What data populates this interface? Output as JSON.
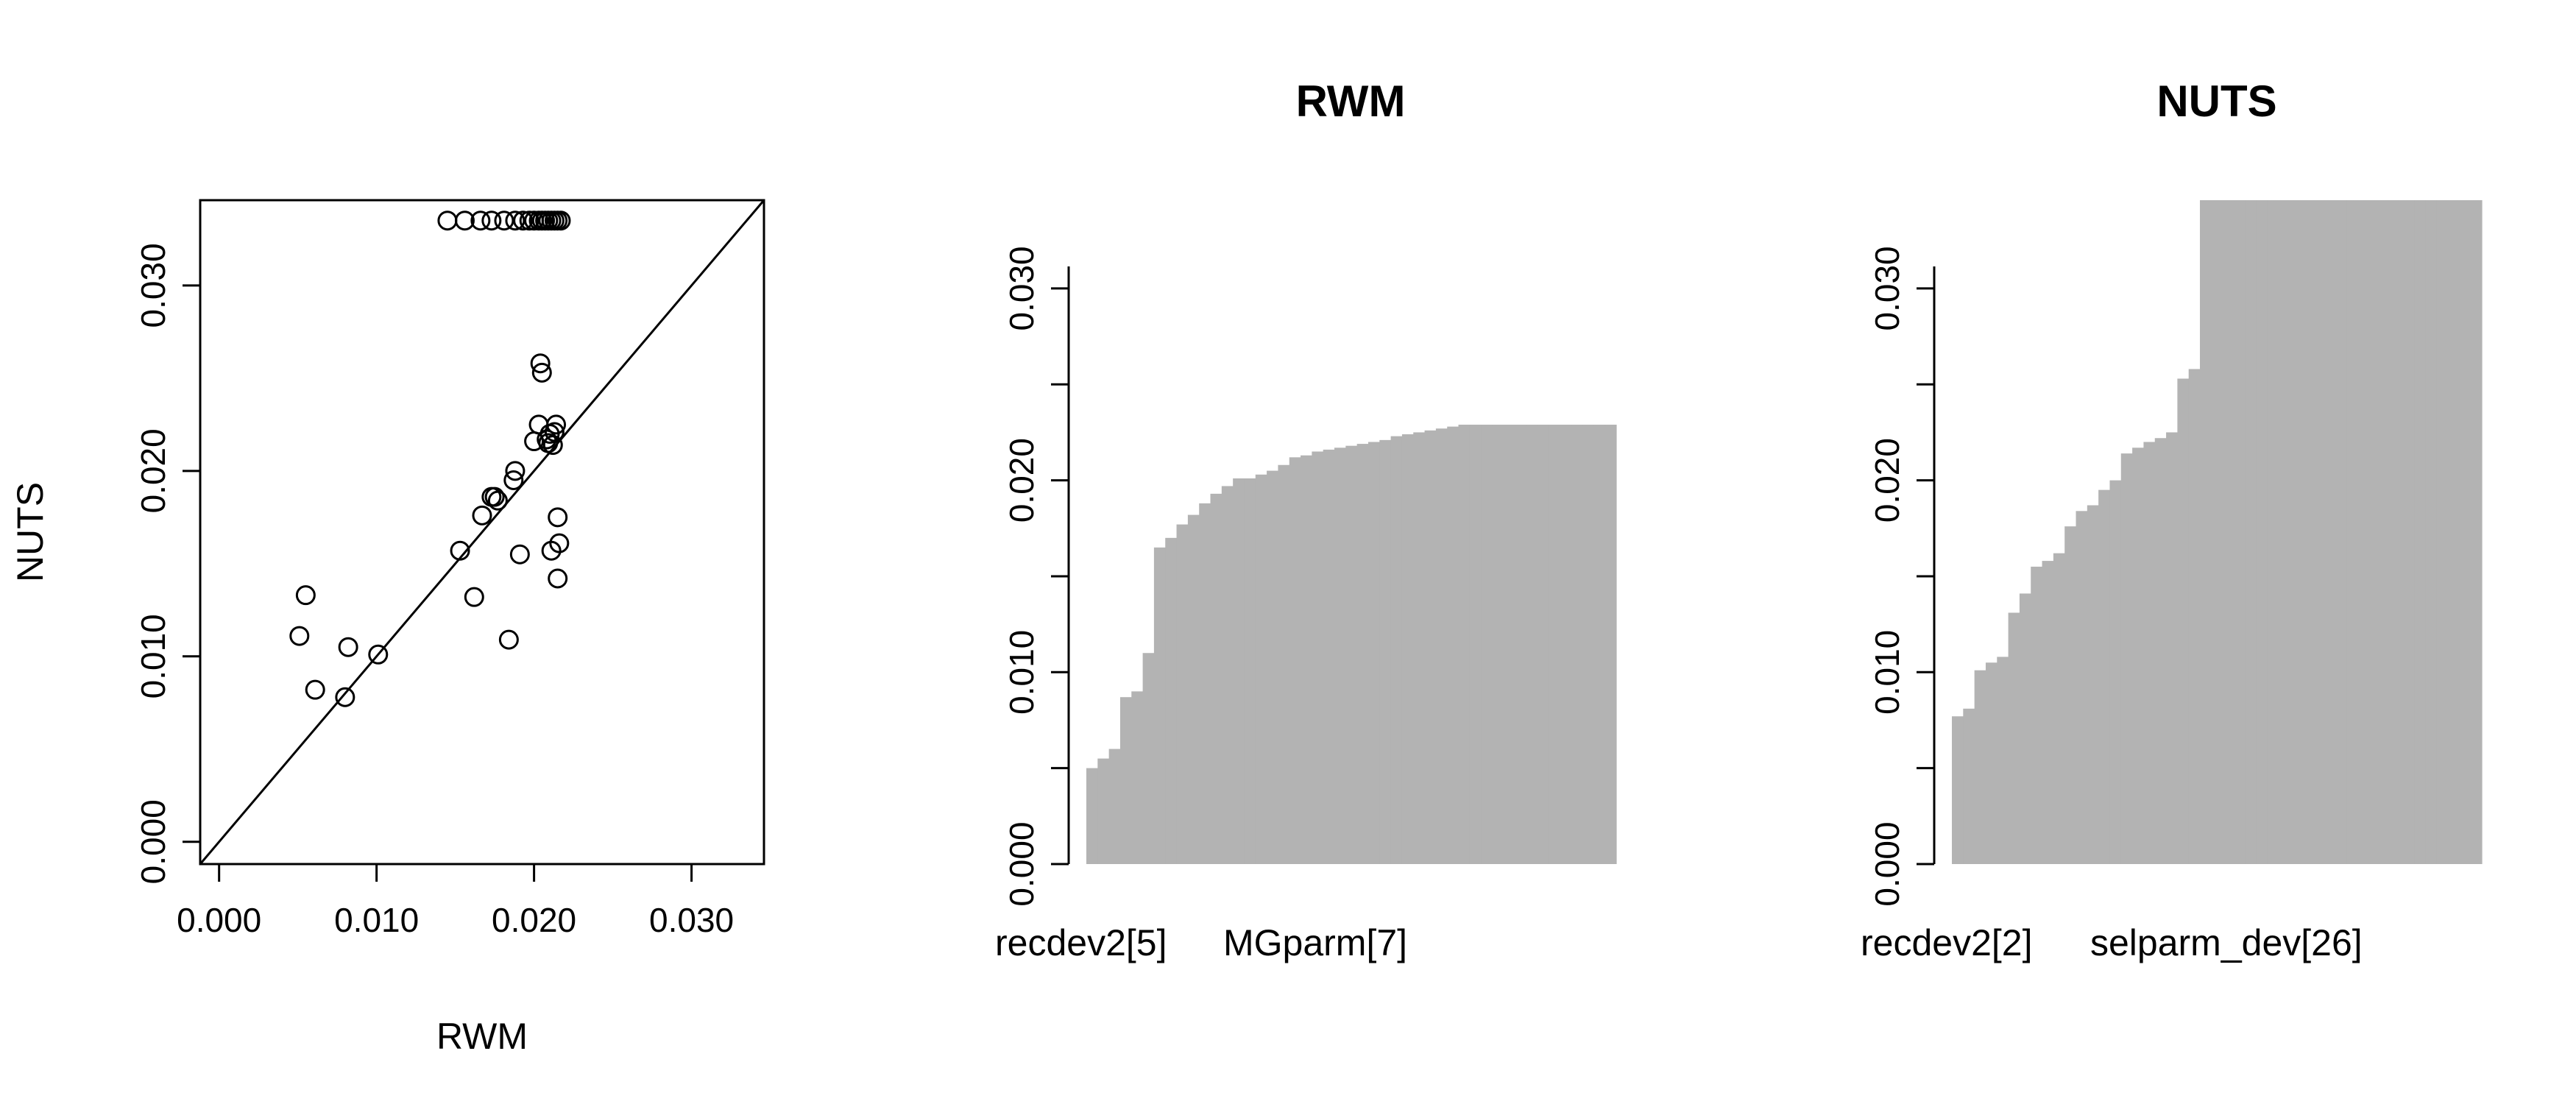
{
  "chart_data": [
    {
      "type": "scatter",
      "title": "",
      "xlabel": "RWM",
      "ylabel": "NUTS",
      "xlim": [
        -0.0012,
        0.0346
      ],
      "ylim": [
        -0.0012,
        0.0346
      ],
      "xticks": [
        "0.000",
        "0.010",
        "0.020",
        "0.030"
      ],
      "yticks": [
        "0.000",
        "0.010",
        "0.020",
        "0.030"
      ],
      "reference_line": "y = x",
      "grid": false,
      "points": [
        {
          "x": 0.0051,
          "y": 0.0111
        },
        {
          "x": 0.0055,
          "y": 0.0133
        },
        {
          "x": 0.0061,
          "y": 0.0082
        },
        {
          "x": 0.008,
          "y": 0.0078
        },
        {
          "x": 0.0082,
          "y": 0.0105
        },
        {
          "x": 0.0101,
          "y": 0.0101
        },
        {
          "x": 0.0153,
          "y": 0.0157
        },
        {
          "x": 0.0162,
          "y": 0.0132
        },
        {
          "x": 0.0167,
          "y": 0.0176
        },
        {
          "x": 0.0173,
          "y": 0.0186
        },
        {
          "x": 0.0175,
          "y": 0.0186
        },
        {
          "x": 0.0177,
          "y": 0.0184
        },
        {
          "x": 0.0184,
          "y": 0.0109
        },
        {
          "x": 0.0187,
          "y": 0.0195
        },
        {
          "x": 0.0188,
          "y": 0.02
        },
        {
          "x": 0.0191,
          "y": 0.0155
        },
        {
          "x": 0.02,
          "y": 0.0216
        },
        {
          "x": 0.0203,
          "y": 0.0225
        },
        {
          "x": 0.0204,
          "y": 0.0258
        },
        {
          "x": 0.0205,
          "y": 0.0253
        },
        {
          "x": 0.0208,
          "y": 0.0217
        },
        {
          "x": 0.0209,
          "y": 0.0215
        },
        {
          "x": 0.021,
          "y": 0.022
        },
        {
          "x": 0.0211,
          "y": 0.0157
        },
        {
          "x": 0.0212,
          "y": 0.0214
        },
        {
          "x": 0.0213,
          "y": 0.0221
        },
        {
          "x": 0.0214,
          "y": 0.0225
        },
        {
          "x": 0.0215,
          "y": 0.0175
        },
        {
          "x": 0.0215,
          "y": 0.0142
        },
        {
          "x": 0.0216,
          "y": 0.0161
        },
        {
          "x": 0.0145,
          "y": 0.0335
        },
        {
          "x": 0.0156,
          "y": 0.0335
        },
        {
          "x": 0.0166,
          "y": 0.0335
        },
        {
          "x": 0.0173,
          "y": 0.0335
        },
        {
          "x": 0.0181,
          "y": 0.0335
        },
        {
          "x": 0.0188,
          "y": 0.0335
        },
        {
          "x": 0.0193,
          "y": 0.0335
        },
        {
          "x": 0.0197,
          "y": 0.0335
        },
        {
          "x": 0.02,
          "y": 0.0335
        },
        {
          "x": 0.0203,
          "y": 0.0335
        },
        {
          "x": 0.0205,
          "y": 0.0335
        },
        {
          "x": 0.0207,
          "y": 0.0335
        },
        {
          "x": 0.0209,
          "y": 0.0335
        },
        {
          "x": 0.0211,
          "y": 0.0335
        },
        {
          "x": 0.0213,
          "y": 0.0335
        },
        {
          "x": 0.0215,
          "y": 0.0335
        },
        {
          "x": 0.0217,
          "y": 0.0335
        }
      ]
    },
    {
      "type": "bar",
      "title": "RWM",
      "xlabel": "",
      "ylabel": "",
      "ylim": [
        0,
        0.0346
      ],
      "yticks": [
        "0.000",
        "0.010",
        "0.020",
        "0.030"
      ],
      "category_labels_shown": [
        "recdev2[5]",
        "MGparm[7]"
      ],
      "values": [
        0.005,
        0.0055,
        0.006,
        0.0087,
        0.009,
        0.011,
        0.0165,
        0.017,
        0.0177,
        0.0182,
        0.0188,
        0.0193,
        0.0197,
        0.0201,
        0.0201,
        0.0203,
        0.0205,
        0.0208,
        0.0212,
        0.0213,
        0.0215,
        0.0216,
        0.0217,
        0.0218,
        0.0219,
        0.022,
        0.0221,
        0.0223,
        0.0224,
        0.0225,
        0.0226,
        0.0227,
        0.0228,
        0.0229,
        0.0229,
        0.0229,
        0.0229,
        0.0229,
        0.0229,
        0.0229,
        0.0229,
        0.0229,
        0.0229,
        0.0229,
        0.0229,
        0.0229,
        0.0229
      ]
    },
    {
      "type": "bar",
      "title": "NUTS",
      "xlabel": "",
      "ylabel": "",
      "ylim": [
        0,
        0.0346
      ],
      "yticks": [
        "0.000",
        "0.010",
        "0.020",
        "0.030"
      ],
      "category_labels_shown": [
        "recdev2[2]",
        "selparm_dev[26]"
      ],
      "values": [
        0.0077,
        0.0081,
        0.0101,
        0.0105,
        0.0108,
        0.0131,
        0.0141,
        0.0155,
        0.0158,
        0.0162,
        0.0176,
        0.0184,
        0.0187,
        0.0195,
        0.02,
        0.0214,
        0.0217,
        0.022,
        0.0222,
        0.0225,
        0.0253,
        0.0258,
        0.0346,
        0.0346,
        0.0346,
        0.0346,
        0.0346,
        0.0346,
        0.0346,
        0.0346,
        0.0346,
        0.0346,
        0.0346,
        0.0346,
        0.0346,
        0.0346,
        0.0346,
        0.0346,
        0.0346,
        0.0346,
        0.0346,
        0.0346,
        0.0346,
        0.0346,
        0.0346,
        0.0346,
        0.0346
      ]
    }
  ]
}
